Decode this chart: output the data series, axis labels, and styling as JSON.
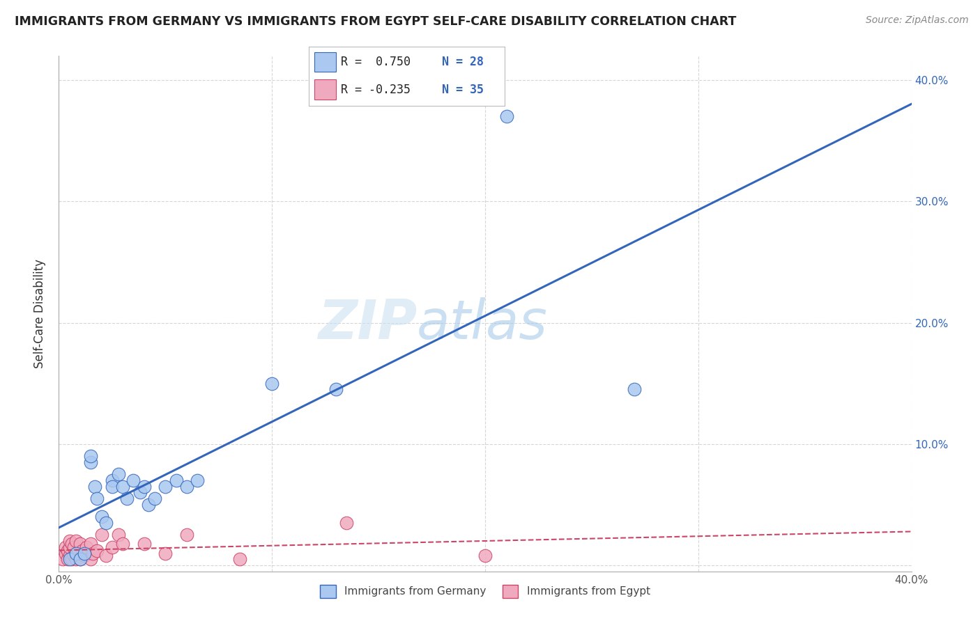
{
  "title": "IMMIGRANTS FROM GERMANY VS IMMIGRANTS FROM EGYPT SELF-CARE DISABILITY CORRELATION CHART",
  "source": "Source: ZipAtlas.com",
  "ylabel": "Self-Care Disability",
  "xlim": [
    0.0,
    0.4
  ],
  "ylim": [
    -0.005,
    0.42
  ],
  "color_germany": "#aac8f0",
  "color_egypt": "#f0aac0",
  "line_color_germany": "#3366bb",
  "line_color_egypt": "#cc4466",
  "watermark_zip": "ZIP",
  "watermark_atlas": "atlas",
  "background_color": "#ffffff",
  "grid_color": "#cccccc",
  "germany_scatter_x": [
    0.005,
    0.008,
    0.01,
    0.012,
    0.015,
    0.015,
    0.017,
    0.018,
    0.02,
    0.022,
    0.025,
    0.025,
    0.028,
    0.03,
    0.032,
    0.035,
    0.038,
    0.04,
    0.042,
    0.045,
    0.05,
    0.055,
    0.06,
    0.065,
    0.1,
    0.13,
    0.21,
    0.27
  ],
  "germany_scatter_y": [
    0.005,
    0.01,
    0.005,
    0.01,
    0.085,
    0.09,
    0.065,
    0.055,
    0.04,
    0.035,
    0.07,
    0.065,
    0.075,
    0.065,
    0.055,
    0.07,
    0.06,
    0.065,
    0.05,
    0.055,
    0.065,
    0.07,
    0.065,
    0.07,
    0.15,
    0.145,
    0.37,
    0.145
  ],
  "egypt_scatter_x": [
    0.002,
    0.003,
    0.003,
    0.004,
    0.004,
    0.005,
    0.005,
    0.005,
    0.006,
    0.006,
    0.007,
    0.007,
    0.008,
    0.008,
    0.009,
    0.01,
    0.01,
    0.011,
    0.012,
    0.013,
    0.015,
    0.015,
    0.016,
    0.018,
    0.02,
    0.022,
    0.025,
    0.028,
    0.03,
    0.04,
    0.05,
    0.06,
    0.085,
    0.135,
    0.2
  ],
  "egypt_scatter_y": [
    0.005,
    0.01,
    0.015,
    0.005,
    0.012,
    0.008,
    0.015,
    0.02,
    0.005,
    0.018,
    0.008,
    0.015,
    0.005,
    0.02,
    0.01,
    0.005,
    0.018,
    0.012,
    0.008,
    0.015,
    0.005,
    0.018,
    0.01,
    0.012,
    0.025,
    0.008,
    0.015,
    0.025,
    0.018,
    0.018,
    0.01,
    0.025,
    0.005,
    0.035,
    0.008
  ]
}
